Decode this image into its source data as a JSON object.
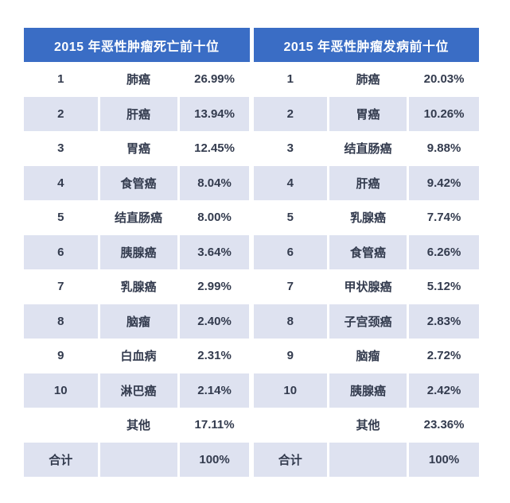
{
  "colors": {
    "header_bg": "#3a6dc5",
    "header_text": "#ffffff",
    "row_shade": "#dee2f0",
    "body_text": "#333b4e",
    "page_bg": "#ffffff"
  },
  "chart_data": [
    {
      "type": "table",
      "title": "2015 年恶性肿瘤死亡前十位",
      "rows": [
        [
          "1",
          "肺癌",
          "26.99%"
        ],
        [
          "2",
          "肝癌",
          "13.94%"
        ],
        [
          "3",
          "胃癌",
          "12.45%"
        ],
        [
          "4",
          "食管癌",
          "8.04%"
        ],
        [
          "5",
          "结直肠癌",
          "8.00%"
        ],
        [
          "6",
          "胰腺癌",
          "3.64%"
        ],
        [
          "7",
          "乳腺癌",
          "2.99%"
        ],
        [
          "8",
          "脑瘤",
          "2.40%"
        ],
        [
          "9",
          "白血病",
          "2.31%"
        ],
        [
          "10",
          "淋巴癌",
          "2.14%"
        ],
        [
          "",
          "其他",
          "17.11%"
        ],
        [
          "合计",
          "",
          "100%"
        ]
      ]
    },
    {
      "type": "table",
      "title": "2015 年恶性肿瘤发病前十位",
      "rows": [
        [
          "1",
          "肺癌",
          "20.03%"
        ],
        [
          "2",
          "胃癌",
          "10.26%"
        ],
        [
          "3",
          "结直肠癌",
          "9.88%"
        ],
        [
          "4",
          "肝癌",
          "9.42%"
        ],
        [
          "5",
          "乳腺癌",
          "7.74%"
        ],
        [
          "6",
          "食管癌",
          "6.26%"
        ],
        [
          "7",
          "甲状腺癌",
          "5.12%"
        ],
        [
          "8",
          "子宫颈癌",
          "2.83%"
        ],
        [
          "9",
          "脑瘤",
          "2.72%"
        ],
        [
          "10",
          "胰腺癌",
          "2.42%"
        ],
        [
          "",
          "其他",
          "23.36%"
        ],
        [
          "合计",
          "",
          "100%"
        ]
      ]
    }
  ]
}
